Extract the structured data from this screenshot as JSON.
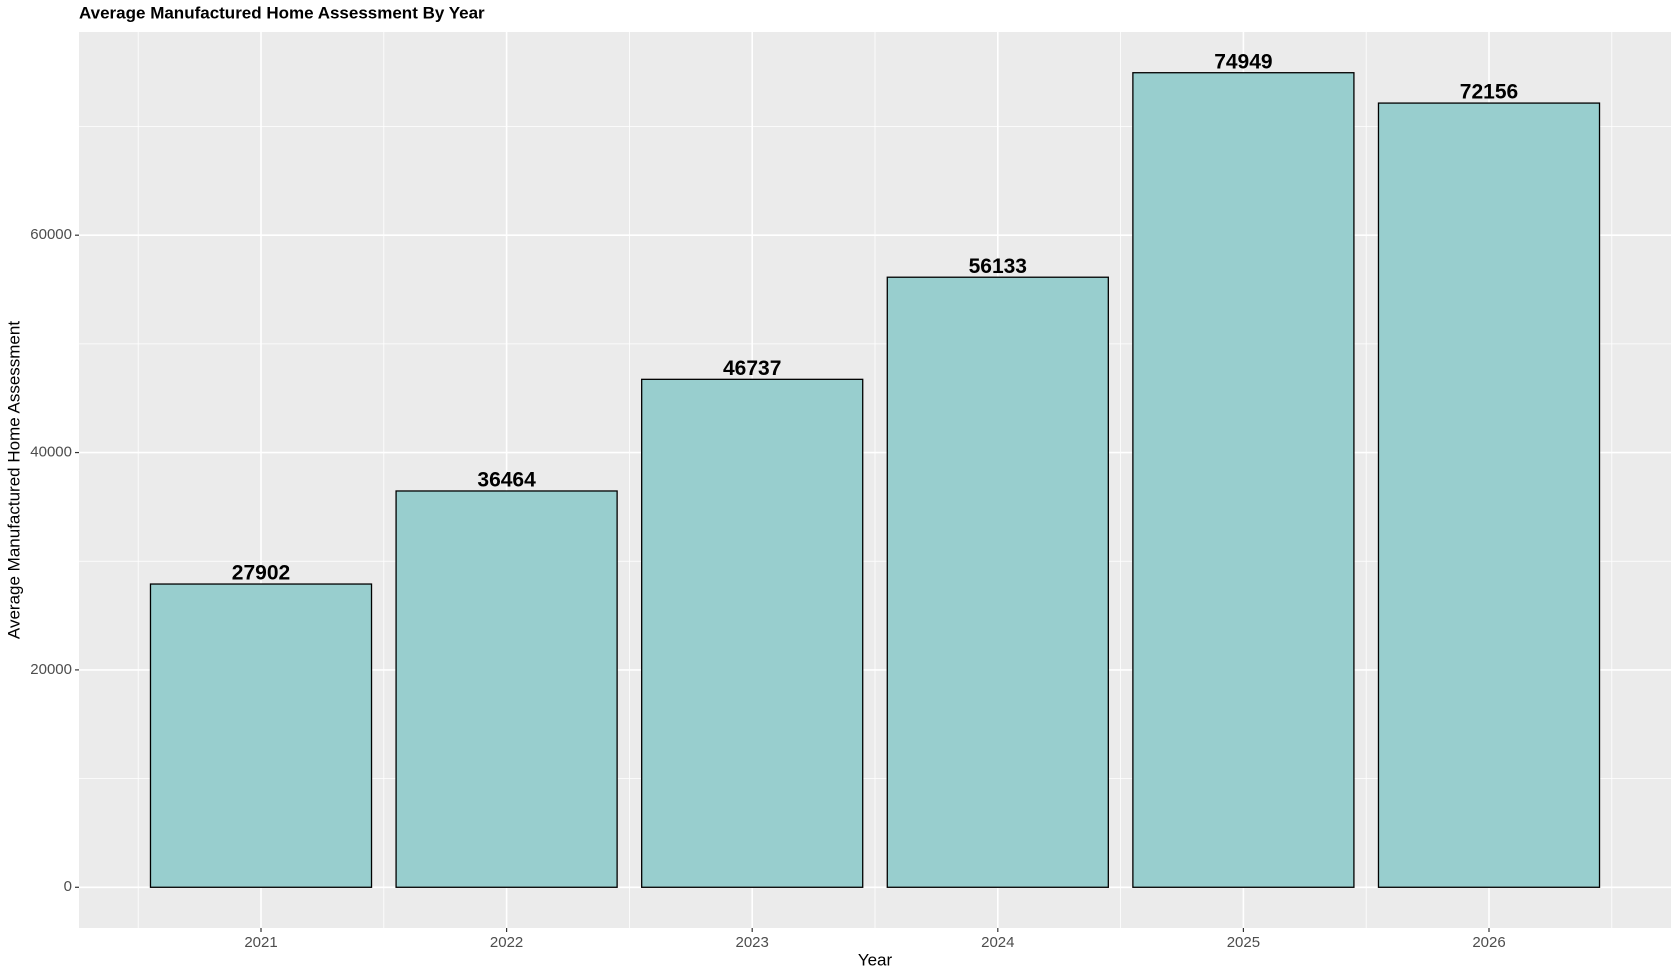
{
  "chart_data": {
    "type": "bar",
    "title": "Average Manufactured Home Assessment By Year",
    "x_label": "Year",
    "y_label": "Average Manufactured Home Assessment",
    "categories": [
      "2021",
      "2022",
      "2023",
      "2024",
      "2025",
      "2026"
    ],
    "values": [
      27902,
      36464,
      46737,
      56133,
      74949,
      72156
    ],
    "color": "#98cece",
    "ylim": [
      -3747,
      78696
    ],
    "yticks": [
      0,
      20000,
      40000,
      60000
    ],
    "grid": true
  }
}
